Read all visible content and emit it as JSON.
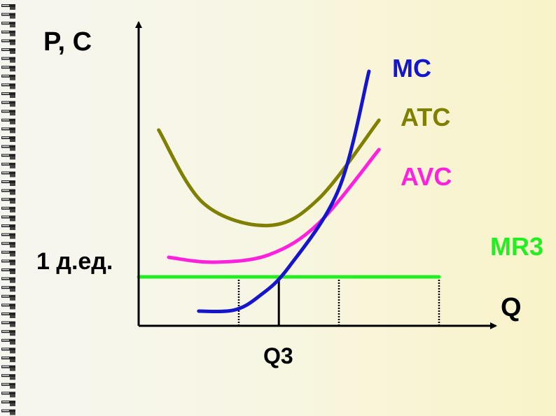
{
  "colors": {
    "background": "#f7f5dc",
    "axis": "#000000",
    "MC": "#1515cc",
    "ATC": "#808000",
    "AVC": "#ff22dd",
    "MR3": "#22ee22"
  },
  "chart_data": {
    "type": "line",
    "axes": {
      "y_label": "P, C",
      "x_label": "Q"
    },
    "y_tick_label": "1 д.ед.",
    "x_tick_label": "Q3",
    "grid": false,
    "series": [
      {
        "name": "MC",
        "points": [
          [
            1.2,
            0.3
          ],
          [
            1.9,
            0.32
          ],
          [
            2.4,
            0.6
          ],
          [
            3.0,
            1.2
          ],
          [
            4.0,
            2.8
          ],
          [
            4.6,
            5.2
          ]
        ]
      },
      {
        "name": "ATC",
        "points": [
          [
            0.4,
            4.0
          ],
          [
            1.3,
            2.5
          ],
          [
            2.6,
            2.05
          ],
          [
            3.6,
            2.6
          ],
          [
            4.8,
            4.2
          ]
        ]
      },
      {
        "name": "AVC",
        "points": [
          [
            0.6,
            1.4
          ],
          [
            1.5,
            1.3
          ],
          [
            2.6,
            1.45
          ],
          [
            3.6,
            2.1
          ],
          [
            4.8,
            3.6
          ]
        ]
      },
      {
        "name": "MR3",
        "points": [
          [
            0.0,
            1.0
          ],
          [
            6.0,
            1.0
          ]
        ]
      }
    ],
    "verticals": [
      {
        "x": 2.0,
        "style": "dotted"
      },
      {
        "x": 2.8,
        "style": "solid"
      },
      {
        "x": 4.0,
        "style": "dotted"
      },
      {
        "x": 6.0,
        "style": "dotted"
      }
    ]
  }
}
